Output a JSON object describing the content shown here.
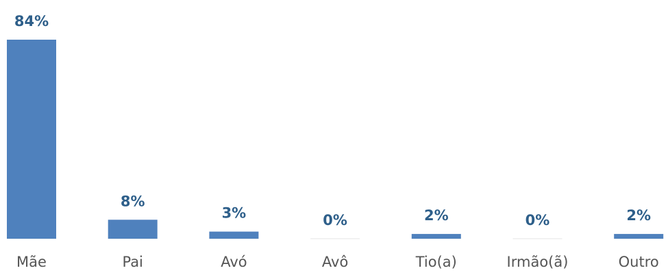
{
  "chart_data": {
    "type": "bar",
    "categories": [
      "Mãe",
      "Pai",
      "Avó",
      "Avô",
      "Tio(a)",
      "Irmão(ã)",
      "Outro"
    ],
    "values": [
      84,
      8,
      3,
      0,
      2,
      0,
      2
    ],
    "value_labels": [
      "84%",
      "8%",
      "3%",
      "0%",
      "2%",
      "0%",
      "2%"
    ],
    "color": "#4f81bd"
  }
}
